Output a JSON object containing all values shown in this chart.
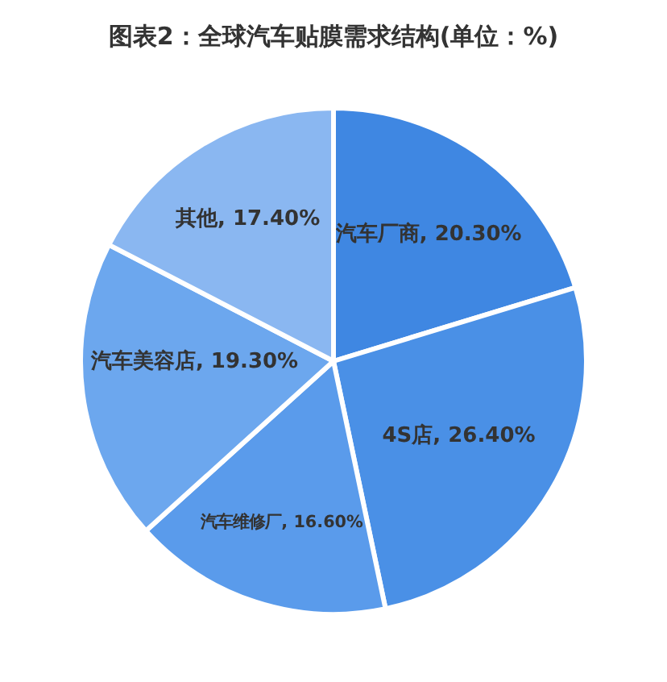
{
  "chart_data": {
    "type": "pie",
    "title": "图表2：全球汽车贴膜需求结构(单位：%)",
    "categories": [
      "汽车厂商",
      "4S店",
      "汽车维修厂",
      "汽车美容店",
      "其他"
    ],
    "values": [
      20.3,
      26.4,
      16.6,
      19.3,
      17.4
    ],
    "value_labels": [
      "20.30%",
      "26.40%",
      "16.60%",
      "19.30%",
      "17.40%"
    ],
    "colors": [
      "#3f87e2",
      "#4a90e6",
      "#5a9beb",
      "#6ca7ee",
      "#8ab7f1"
    ]
  }
}
